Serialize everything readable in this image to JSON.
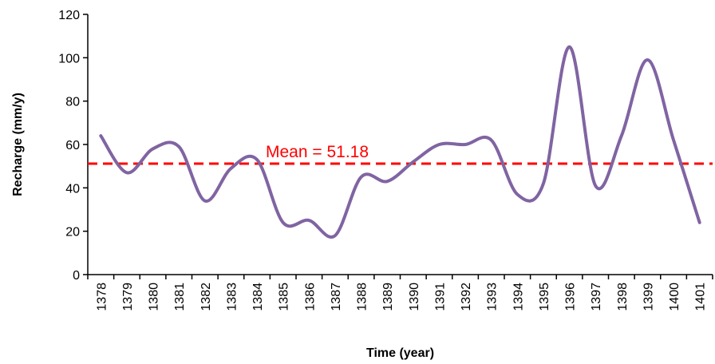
{
  "chart_data": {
    "type": "line",
    "title": "",
    "xlabel": "Time (year)",
    "ylabel": "Recharge (mm/y)",
    "ylim": [
      0,
      120
    ],
    "yticks": [
      0,
      20,
      40,
      60,
      80,
      100,
      120
    ],
    "categories": [
      "1378",
      "1379",
      "1380",
      "1381",
      "1382",
      "1383",
      "1384",
      "1385",
      "1386",
      "1387",
      "1388",
      "1389",
      "1390",
      "1391",
      "1392",
      "1393",
      "1394",
      "1395",
      "1396",
      "1397",
      "1398",
      "1399",
      "1400",
      "1401"
    ],
    "series": [
      {
        "values": [
          64,
          47,
          58,
          59,
          34,
          49,
          53,
          24,
          25,
          18,
          45,
          43,
          52,
          60,
          60,
          62,
          37,
          42,
          105,
          41,
          64,
          99,
          62,
          24
        ]
      }
    ],
    "mean": {
      "value": 51.18,
      "label": "Mean = 51.18"
    },
    "grid": false,
    "legend": "none",
    "colors": {
      "line": "#8064a2",
      "mean": "#ff0000",
      "axis": "#000000"
    }
  }
}
